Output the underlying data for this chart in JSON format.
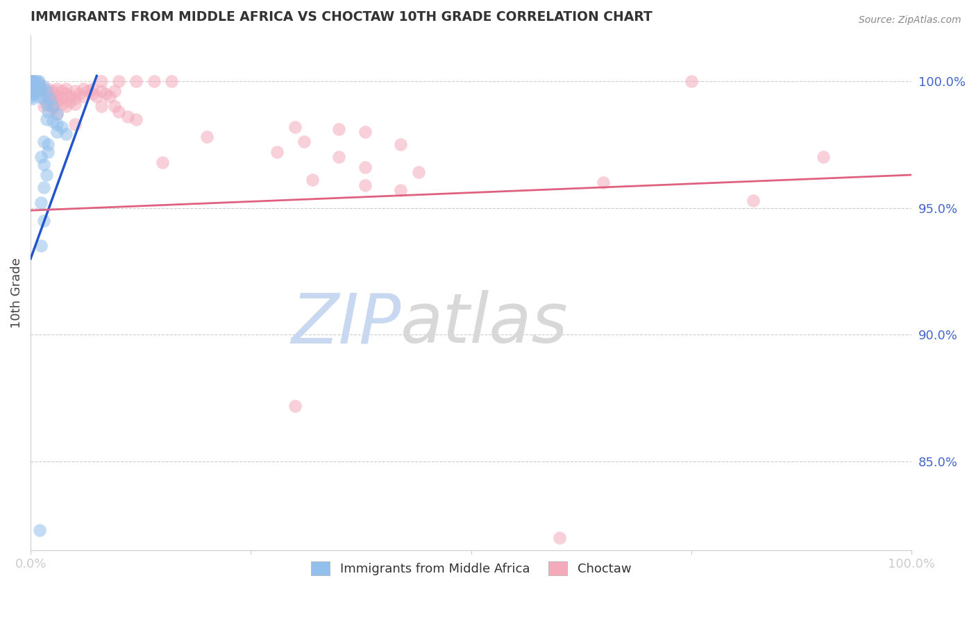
{
  "title": "IMMIGRANTS FROM MIDDLE AFRICA VS CHOCTAW 10TH GRADE CORRELATION CHART",
  "source": "Source: ZipAtlas.com",
  "ylabel": "10th Grade",
  "yaxis_labels": [
    "100.0%",
    "95.0%",
    "90.0%",
    "85.0%"
  ],
  "yaxis_values": [
    1.0,
    0.95,
    0.9,
    0.85
  ],
  "xmin": 0.0,
  "xmax": 1.0,
  "ymin": 0.815,
  "ymax": 1.018,
  "blue_color": "#92C0EC",
  "pink_color": "#F4AABB",
  "blue_line_color": "#2255CC",
  "pink_line_color": "#E06080",
  "title_color": "#333333",
  "axis_label_color": "#4466CC",
  "watermark_zip_color": "#C8D8F0",
  "watermark_atlas_color": "#D8D8D8",
  "background_color": "#FFFFFF",
  "blue_scatter": [
    [
      0.001,
      1.0
    ],
    [
      0.002,
      1.0
    ],
    [
      0.003,
      1.0
    ],
    [
      0.008,
      1.0
    ],
    [
      0.009,
      1.0
    ],
    [
      0.001,
      0.999
    ],
    [
      0.002,
      0.999
    ],
    [
      0.001,
      0.998
    ],
    [
      0.002,
      0.998
    ],
    [
      0.003,
      0.998
    ],
    [
      0.001,
      0.997
    ],
    [
      0.002,
      0.997
    ],
    [
      0.003,
      0.997
    ],
    [
      0.001,
      0.996
    ],
    [
      0.002,
      0.996
    ],
    [
      0.001,
      0.995
    ],
    [
      0.002,
      0.995
    ],
    [
      0.001,
      0.994
    ],
    [
      0.002,
      0.993
    ],
    [
      0.01,
      0.998
    ],
    [
      0.014,
      0.998
    ],
    [
      0.012,
      0.996
    ],
    [
      0.018,
      0.996
    ],
    [
      0.01,
      0.994
    ],
    [
      0.015,
      0.993
    ],
    [
      0.022,
      0.993
    ],
    [
      0.018,
      0.991
    ],
    [
      0.025,
      0.99
    ],
    [
      0.02,
      0.988
    ],
    [
      0.03,
      0.987
    ],
    [
      0.018,
      0.985
    ],
    [
      0.025,
      0.984
    ],
    [
      0.03,
      0.983
    ],
    [
      0.035,
      0.982
    ],
    [
      0.03,
      0.98
    ],
    [
      0.04,
      0.979
    ],
    [
      0.015,
      0.976
    ],
    [
      0.02,
      0.975
    ],
    [
      0.02,
      0.972
    ],
    [
      0.012,
      0.97
    ],
    [
      0.015,
      0.967
    ],
    [
      0.018,
      0.963
    ],
    [
      0.015,
      0.958
    ],
    [
      0.012,
      0.952
    ],
    [
      0.015,
      0.945
    ],
    [
      0.012,
      0.935
    ],
    [
      0.01,
      0.823
    ]
  ],
  "pink_scatter": [
    [
      0.001,
      1.0
    ],
    [
      0.003,
      1.0
    ],
    [
      0.005,
      1.0
    ],
    [
      0.08,
      1.0
    ],
    [
      0.1,
      1.0
    ],
    [
      0.12,
      1.0
    ],
    [
      0.14,
      1.0
    ],
    [
      0.16,
      1.0
    ],
    [
      0.75,
      1.0
    ],
    [
      0.003,
      0.999
    ],
    [
      0.006,
      0.999
    ],
    [
      0.009,
      0.999
    ],
    [
      0.004,
      0.998
    ],
    [
      0.007,
      0.998
    ],
    [
      0.01,
      0.998
    ],
    [
      0.005,
      0.997
    ],
    [
      0.008,
      0.997
    ],
    [
      0.012,
      0.997
    ],
    [
      0.02,
      0.997
    ],
    [
      0.03,
      0.997
    ],
    [
      0.04,
      0.997
    ],
    [
      0.06,
      0.997
    ],
    [
      0.07,
      0.997
    ],
    [
      0.025,
      0.996
    ],
    [
      0.035,
      0.996
    ],
    [
      0.05,
      0.996
    ],
    [
      0.065,
      0.996
    ],
    [
      0.08,
      0.996
    ],
    [
      0.095,
      0.996
    ],
    [
      0.015,
      0.995
    ],
    [
      0.025,
      0.995
    ],
    [
      0.04,
      0.995
    ],
    [
      0.055,
      0.995
    ],
    [
      0.07,
      0.995
    ],
    [
      0.085,
      0.995
    ],
    [
      0.02,
      0.994
    ],
    [
      0.03,
      0.994
    ],
    [
      0.045,
      0.994
    ],
    [
      0.06,
      0.994
    ],
    [
      0.075,
      0.994
    ],
    [
      0.09,
      0.994
    ],
    [
      0.025,
      0.993
    ],
    [
      0.035,
      0.993
    ],
    [
      0.05,
      0.993
    ],
    [
      0.03,
      0.992
    ],
    [
      0.045,
      0.992
    ],
    [
      0.02,
      0.991
    ],
    [
      0.035,
      0.991
    ],
    [
      0.05,
      0.991
    ],
    [
      0.015,
      0.99
    ],
    [
      0.025,
      0.99
    ],
    [
      0.04,
      0.99
    ],
    [
      0.08,
      0.99
    ],
    [
      0.095,
      0.99
    ],
    [
      0.025,
      0.989
    ],
    [
      0.1,
      0.988
    ],
    [
      0.03,
      0.987
    ],
    [
      0.11,
      0.986
    ],
    [
      0.12,
      0.985
    ],
    [
      0.05,
      0.983
    ],
    [
      0.3,
      0.982
    ],
    [
      0.35,
      0.981
    ],
    [
      0.38,
      0.98
    ],
    [
      0.2,
      0.978
    ],
    [
      0.31,
      0.976
    ],
    [
      0.42,
      0.975
    ],
    [
      0.28,
      0.972
    ],
    [
      0.35,
      0.97
    ],
    [
      0.15,
      0.968
    ],
    [
      0.38,
      0.966
    ],
    [
      0.44,
      0.964
    ],
    [
      0.32,
      0.961
    ],
    [
      0.38,
      0.959
    ],
    [
      0.42,
      0.957
    ],
    [
      0.3,
      0.872
    ],
    [
      0.65,
      0.96
    ],
    [
      0.82,
      0.953
    ],
    [
      0.9,
      0.97
    ],
    [
      0.6,
      0.82
    ]
  ],
  "blue_line_x": [
    0.0,
    0.075
  ],
  "blue_line_y": [
    0.93,
    1.002
  ],
  "pink_line_x": [
    0.0,
    1.0
  ],
  "pink_line_y": [
    0.949,
    0.963
  ]
}
